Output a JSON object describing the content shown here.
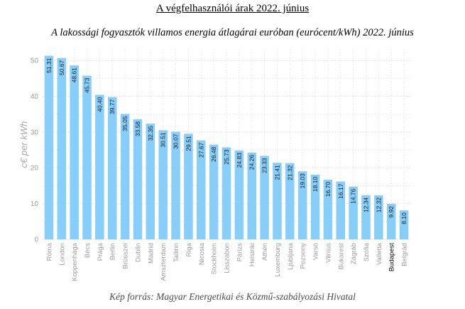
{
  "header": {
    "title": "A végfelhasználói árak 2022. június",
    "subtitle": "A lakossági fogyasztók villamos energia átlagárai euróban (eurócent/kWh) 2022. június"
  },
  "footer": {
    "source": "Kép forrás: Magyar Energetikai és Közmű-szabályozási Hivatal"
  },
  "colors": {
    "bar": "#87CEFA",
    "grid": "#d4d4d4",
    "axis_text": "#9a9a9a",
    "highlight_text": "#000000"
  },
  "chart_data": {
    "type": "bar",
    "title": "A lakossági fogyasztók villamos energia átlagárai euróban (eurócent/kWh) 2022. június",
    "ylabel": "c€ per kWh",
    "xlabel": "",
    "ylim": [
      0,
      53
    ],
    "yticks": [
      0,
      10,
      20,
      30,
      40,
      50
    ],
    "grid": true,
    "categories": [
      "Róma",
      "London",
      "Koppenhága",
      "Bécs",
      "Prága",
      "Berlin",
      "Brüsszel",
      "Dublin",
      "Madrid",
      "Amszterdam",
      "Tallinn",
      "Riga",
      "Nicosia",
      "Stockholm",
      "Lisszabon",
      "Párizs",
      "Helsinki",
      "Athén",
      "Luxemburg",
      "Ljubljana",
      "Pozsony",
      "Varsó",
      "Vilnius",
      "Bukarest",
      "Zágráb",
      "Szófia",
      "Valletta",
      "Budapest",
      "Belgrád"
    ],
    "values": [
      51.31,
      50.67,
      48.61,
      45.73,
      40.4,
      39.77,
      35.05,
      33.58,
      32.35,
      30.51,
      30.07,
      29.51,
      27.67,
      26.48,
      25.73,
      24.83,
      24.26,
      23.33,
      21.41,
      21.32,
      19.03,
      18.1,
      16.7,
      16.17,
      14.76,
      12.34,
      12.32,
      9.92,
      8.1
    ],
    "value_labels": [
      "51.31",
      "50.67",
      "48.61",
      "45.73",
      "40.40",
      "39.77",
      "35.05",
      "33.58",
      "32.35",
      "30.51",
      "30.07",
      "29.51",
      "27.67",
      "26.48",
      "25.73",
      "24.83",
      "24.26",
      "23.33",
      "21.41",
      "21.32",
      "19.03",
      "18.10",
      "16.70",
      "16.17",
      "14.76",
      "12.34",
      "12.32",
      "9.92",
      "8.10"
    ],
    "highlight": "Budapest"
  }
}
